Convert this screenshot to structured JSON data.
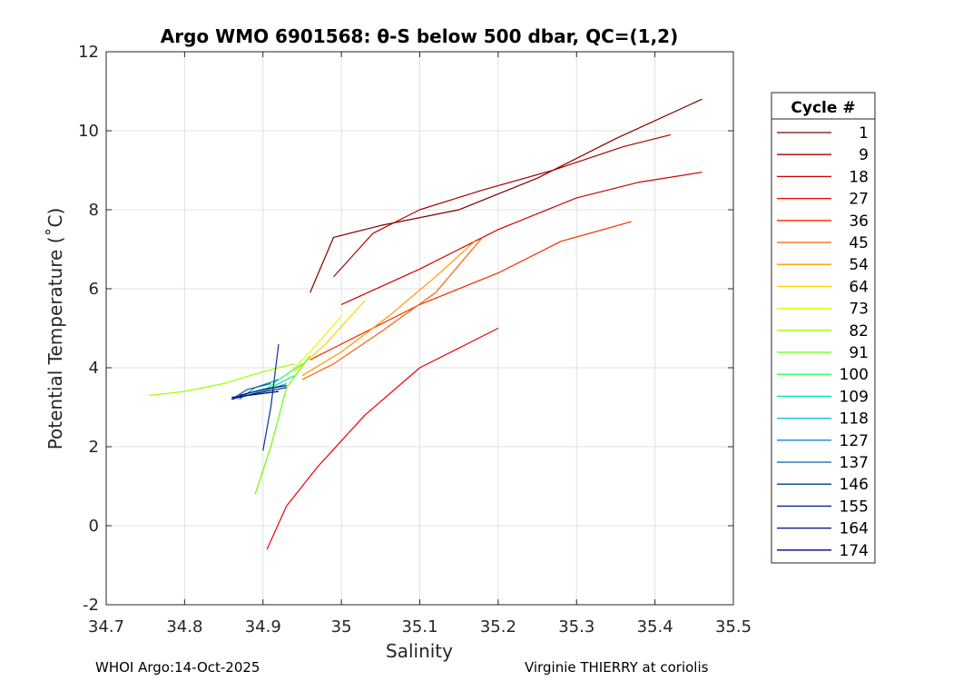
{
  "chart_data": {
    "type": "line",
    "title": "Argo WMO 6901568: θ-S below 500 dbar,  QC=(1,2)",
    "xlabel": "Salinity",
    "ylabel": "Potential Temperature (˚C)",
    "xlim": [
      34.7,
      35.5
    ],
    "ylim": [
      -2,
      12
    ],
    "xticks": [
      34.7,
      34.8,
      34.9,
      35,
      35.1,
      35.2,
      35.3,
      35.4,
      35.5
    ],
    "xtick_labels": [
      "34.7",
      "34.8",
      "34.9",
      "35",
      "35.1",
      "35.2",
      "35.3",
      "35.4",
      "35.5"
    ],
    "yticks": [
      -2,
      0,
      2,
      4,
      6,
      8,
      10,
      12
    ],
    "ytick_labels": [
      "-2",
      "0",
      "2",
      "4",
      "6",
      "8",
      "10",
      "12"
    ],
    "grid": true,
    "legend": {
      "title": "Cycle #",
      "position": "right",
      "entries": [
        "1",
        "9",
        "18",
        "27",
        "36",
        "45",
        "54",
        "64",
        "73",
        "82",
        "91",
        "100",
        "109",
        "118",
        "127",
        "137",
        "146",
        "155",
        "164",
        "174"
      ],
      "colors": [
        "#800000",
        "#a80000",
        "#d00000",
        "#f00000",
        "#ff2800",
        "#ff6000",
        "#ff9800",
        "#ffd000",
        "#d8ff00",
        "#a0ff00",
        "#68ff00",
        "#30ff60",
        "#00e8b0",
        "#00c0e0",
        "#0090c0",
        "#0060a8",
        "#003898",
        "#001890",
        "#000c70",
        "#00008f"
      ]
    },
    "series": [
      {
        "name": "1",
        "x": [
          34.96,
          34.99,
          35.05,
          35.15,
          35.25,
          35.35,
          35.46
        ],
        "y": [
          5.9,
          7.3,
          7.6,
          8.0,
          8.8,
          9.8,
          10.8
        ]
      },
      {
        "name": "9",
        "x": [
          34.99,
          35.04,
          35.1,
          35.18,
          35.27,
          35.36,
          35.42
        ],
        "y": [
          6.3,
          7.4,
          8.0,
          8.5,
          9.0,
          9.6,
          9.9
        ]
      },
      {
        "name": "18",
        "x": [
          35.0,
          35.1,
          35.2,
          35.3,
          35.38,
          35.46
        ],
        "y": [
          5.6,
          6.5,
          7.5,
          8.3,
          8.7,
          8.95
        ]
      },
      {
        "name": "27",
        "x": [
          34.905,
          34.93,
          34.97,
          35.03,
          35.1,
          35.15,
          35.2
        ],
        "y": [
          -0.6,
          0.5,
          1.5,
          2.8,
          4.0,
          4.5,
          5.0
        ]
      },
      {
        "name": "36",
        "x": [
          34.96,
          35.02,
          35.1,
          35.2,
          35.28,
          35.37
        ],
        "y": [
          4.2,
          4.8,
          5.6,
          6.4,
          7.2,
          7.7
        ]
      },
      {
        "name": "45",
        "x": [
          34.95,
          34.99,
          35.05,
          35.12,
          35.18
        ],
        "y": [
          3.7,
          4.1,
          4.9,
          5.9,
          7.3
        ]
      },
      {
        "name": "54",
        "x": [
          34.95,
          35.0,
          35.06,
          35.12,
          35.17
        ],
        "y": [
          3.8,
          4.4,
          5.3,
          6.3,
          7.2
        ]
      },
      {
        "name": "64",
        "x": [
          34.94,
          34.98,
          35.03
        ],
        "y": [
          3.9,
          4.6,
          5.7
        ]
      },
      {
        "name": "73",
        "x": [
          34.93,
          34.96,
          35.0
        ],
        "y": [
          3.8,
          4.4,
          5.3
        ]
      },
      {
        "name": "82",
        "x": [
          34.755,
          34.8,
          34.85,
          34.9,
          34.94
        ],
        "y": [
          3.3,
          3.4,
          3.6,
          3.9,
          4.1
        ]
      },
      {
        "name": "91",
        "x": [
          34.89,
          34.91,
          34.93,
          34.96
        ],
        "y": [
          0.8,
          2.0,
          3.5,
          4.3
        ]
      },
      {
        "name": "100",
        "x": [
          34.9,
          34.92,
          34.95
        ],
        "y": [
          3.4,
          3.7,
          4.1
        ]
      },
      {
        "name": "109",
        "x": [
          34.88,
          34.91,
          34.94
        ],
        "y": [
          3.3,
          3.5,
          3.8
        ]
      },
      {
        "name": "118",
        "x": [
          34.87,
          34.9,
          34.93
        ],
        "y": [
          3.25,
          3.4,
          3.6
        ]
      },
      {
        "name": "127",
        "x": [
          34.87,
          34.89,
          34.92
        ],
        "y": [
          3.2,
          3.5,
          3.7
        ]
      },
      {
        "name": "137",
        "x": [
          34.86,
          34.88,
          34.91
        ],
        "y": [
          3.2,
          3.45,
          3.6
        ]
      },
      {
        "name": "146",
        "x": [
          34.9,
          34.91,
          34.92
        ],
        "y": [
          1.9,
          3.0,
          4.6
        ]
      },
      {
        "name": "155",
        "x": [
          34.86,
          34.89,
          34.93
        ],
        "y": [
          3.2,
          3.35,
          3.5
        ]
      },
      {
        "name": "164",
        "x": [
          34.87,
          34.9,
          34.93
        ],
        "y": [
          3.3,
          3.45,
          3.55
        ]
      },
      {
        "name": "174",
        "x": [
          34.86,
          34.88,
          34.92
        ],
        "y": [
          3.25,
          3.3,
          3.4
        ]
      }
    ]
  },
  "footer": {
    "left": "WHOI Argo:14-Oct-2025",
    "right": "Virginie THIERRY at coriolis"
  }
}
